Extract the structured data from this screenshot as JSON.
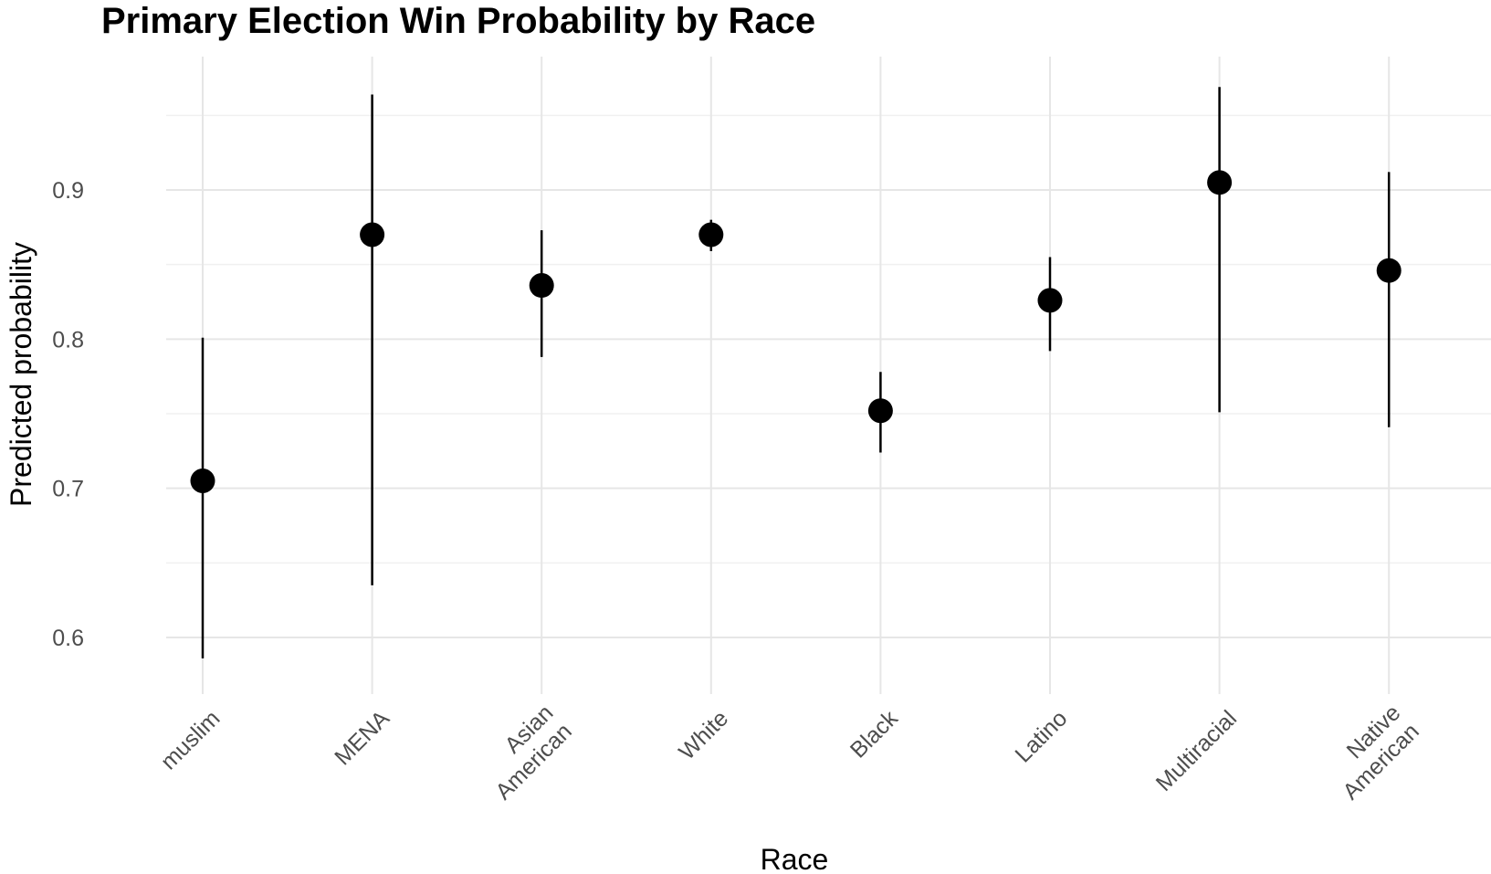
{
  "chart_data": {
    "type": "scatter",
    "title": "Primary Election Win Probability by Race",
    "xlabel": "Race",
    "ylabel": "Predicted probability",
    "ylim": [
      0.565,
      0.985
    ],
    "yticks": [
      0.6,
      0.7,
      0.8,
      0.9
    ],
    "ytick_labels": [
      "0.6",
      "0.7",
      "0.8",
      "0.9"
    ],
    "grid": true,
    "legend": "none",
    "categories": [
      {
        "key": "muslim",
        "lines": [
          "muslim"
        ],
        "value": 0.705,
        "lower": 0.586,
        "upper": 0.801
      },
      {
        "key": "mena",
        "lines": [
          "MENA"
        ],
        "value": 0.87,
        "lower": 0.635,
        "upper": 0.964
      },
      {
        "key": "asian-american",
        "lines": [
          "Asian",
          "American"
        ],
        "value": 0.836,
        "lower": 0.788,
        "upper": 0.873
      },
      {
        "key": "white",
        "lines": [
          "White"
        ],
        "value": 0.87,
        "lower": 0.859,
        "upper": 0.88
      },
      {
        "key": "black",
        "lines": [
          "Black"
        ],
        "value": 0.752,
        "lower": 0.724,
        "upper": 0.778
      },
      {
        "key": "latino",
        "lines": [
          "Latino"
        ],
        "value": 0.826,
        "lower": 0.792,
        "upper": 0.855
      },
      {
        "key": "multiracial",
        "lines": [
          "Multiracial"
        ],
        "value": 0.905,
        "lower": 0.751,
        "upper": 0.969
      },
      {
        "key": "native-american",
        "lines": [
          "Native",
          "American"
        ],
        "value": 0.846,
        "lower": 0.741,
        "upper": 0.912
      }
    ],
    "colors": {
      "point": "#000000",
      "errorbar": "#000000",
      "grid": "#e6e6e6",
      "tick_text": "#4d4d4d"
    }
  }
}
